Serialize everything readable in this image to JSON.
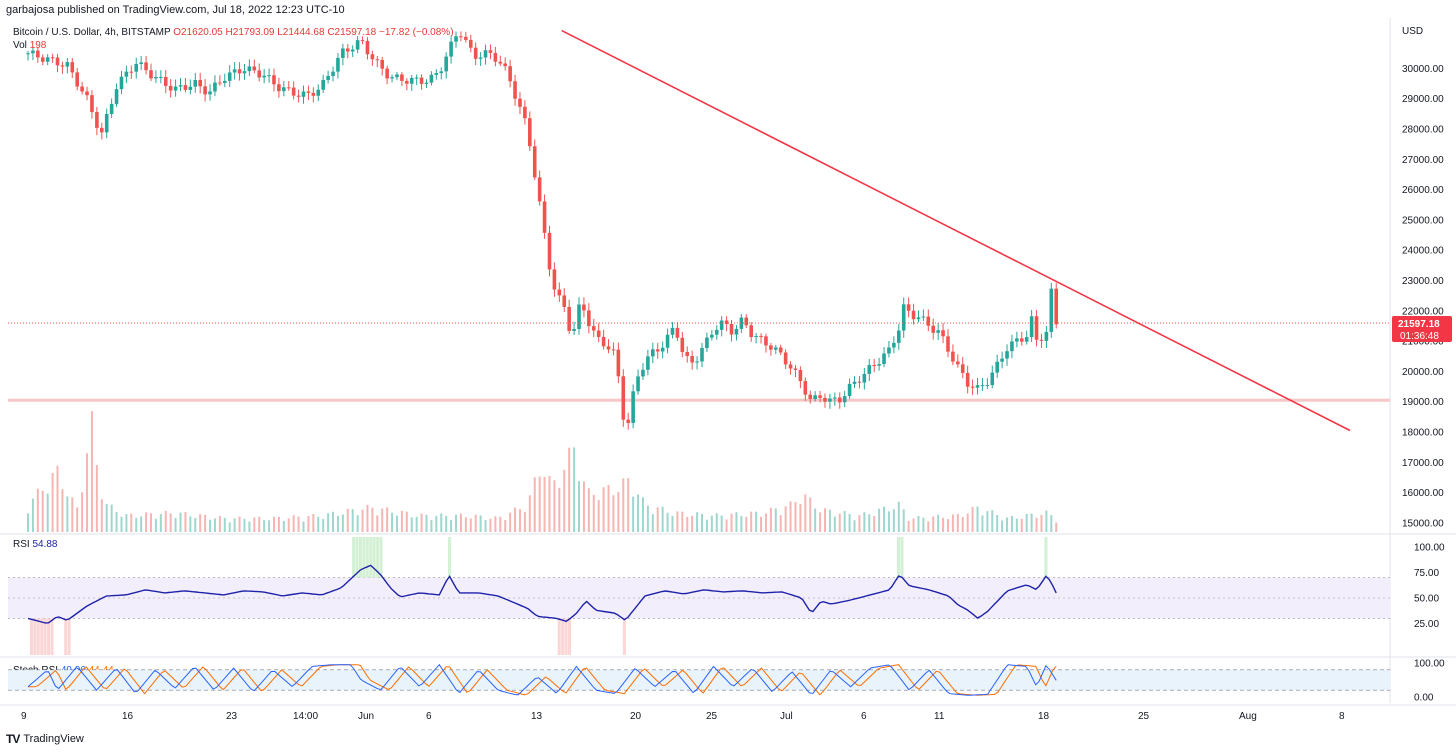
{
  "header": {
    "text": "garbajosa published on TradingView.com, Jul 18, 2022 12:23 UTC-10"
  },
  "legend": {
    "symbol": "Bitcoin / U.S. Dollar, 4h, BITSTAMP",
    "open": "O21620.05",
    "high": "H21793.09",
    "low": "L21444.68",
    "close": "C21597.18",
    "change": "−17.82 (−0.08%)"
  },
  "volume": {
    "label": "Vol",
    "value": "198"
  },
  "rsi": {
    "label": "RSI",
    "value": "54.88"
  },
  "stoch": {
    "label": "Stoch RSI",
    "k": "49.06",
    "d": "44.44"
  },
  "footer": {
    "brand": "TradingView"
  },
  "colors": {
    "up": "#26a69a",
    "down": "#ef5350",
    "trendline": "#f23645",
    "rsi": "#1e22aa",
    "stoch_k": "#2962ff",
    "stoch_d": "#ff6d00"
  },
  "chart_data": {
    "type": "candlestick",
    "currency": "USD",
    "y_ticks": [
      30000,
      29000,
      28000,
      27000,
      26000,
      25000,
      24000,
      23000,
      22000,
      21000,
      20000,
      19000,
      18000,
      17000,
      16000,
      15000
    ],
    "x_ticks": [
      "9",
      "16",
      "23",
      "14:00",
      "Jun",
      "6",
      "13",
      "20",
      "25",
      "Jul",
      "6",
      "11",
      "18",
      "25",
      "Aug",
      "8"
    ],
    "last_price": "21597.18",
    "countdown": "01:36:48",
    "price_path": [
      [
        0,
        30500
      ],
      [
        4,
        30100
      ],
      [
        6,
        29000
      ],
      [
        7.5,
        27800
      ],
      [
        9,
        29400
      ],
      [
        11,
        30200
      ],
      [
        13,
        29700
      ],
      [
        15,
        29300
      ],
      [
        17,
        29500
      ],
      [
        18.5,
        29200
      ],
      [
        20,
        29700
      ],
      [
        22,
        30000
      ],
      [
        24,
        29800
      ],
      [
        25.5,
        29400
      ],
      [
        27,
        29200
      ],
      [
        28.5,
        29100
      ],
      [
        30,
        29400
      ],
      [
        32,
        30500
      ],
      [
        34,
        30900
      ],
      [
        35.5,
        30200
      ],
      [
        37,
        29700
      ],
      [
        39,
        29600
      ],
      [
        41,
        29600
      ],
      [
        42,
        29900
      ],
      [
        43,
        30600
      ],
      [
        44,
        31300
      ],
      [
        45.5,
        30400
      ],
      [
        47,
        30500
      ],
      [
        48,
        30300
      ],
      [
        49,
        29800
      ],
      [
        50,
        28900
      ],
      [
        51,
        28000
      ],
      [
        51.5,
        27000
      ],
      [
        52,
        26000
      ],
      [
        52.5,
        25000
      ],
      [
        53,
        24000
      ],
      [
        53.5,
        23000
      ],
      [
        54,
        22500
      ],
      [
        55,
        22000
      ],
      [
        55.5,
        21000
      ],
      [
        56,
        21700
      ],
      [
        56.5,
        22400
      ],
      [
        57,
        21800
      ],
      [
        58,
        21100
      ],
      [
        59,
        20900
      ],
      [
        60,
        20500
      ],
      [
        60.5,
        19300
      ],
      [
        61,
        18000
      ],
      [
        61.5,
        18500
      ],
      [
        62,
        19700
      ],
      [
        63,
        20300
      ],
      [
        64,
        20700
      ],
      [
        65,
        20900
      ],
      [
        66,
        21500
      ],
      [
        66.5,
        21100
      ],
      [
        67,
        20400
      ],
      [
        68,
        20300
      ],
      [
        69,
        20800
      ],
      [
        70,
        21400
      ],
      [
        71,
        21600
      ],
      [
        72,
        21300
      ],
      [
        73,
        21700
      ],
      [
        74,
        21200
      ],
      [
        75,
        21000
      ],
      [
        76,
        20800
      ],
      [
        77,
        20500
      ],
      [
        78,
        20100
      ],
      [
        79,
        19600
      ],
      [
        80,
        19000
      ],
      [
        81,
        19200
      ],
      [
        82,
        19000
      ],
      [
        83,
        19100
      ],
      [
        84,
        19500
      ],
      [
        85,
        19800
      ],
      [
        86,
        20100
      ],
      [
        87,
        20400
      ],
      [
        88,
        20700
      ],
      [
        89,
        21500
      ],
      [
        89.5,
        22200
      ],
      [
        90,
        21900
      ],
      [
        91,
        21800
      ],
      [
        92,
        21500
      ],
      [
        93,
        21300
      ],
      [
        94,
        20700
      ],
      [
        95,
        20100
      ],
      [
        96,
        19600
      ],
      [
        97,
        19400
      ],
      [
        98,
        19700
      ],
      [
        99,
        20200
      ],
      [
        100,
        20800
      ],
      [
        101,
        21000
      ],
      [
        102,
        21200
      ],
      [
        102.5,
        21700
      ],
      [
        103,
        21000
      ],
      [
        104,
        21300
      ],
      [
        104.5,
        22600
      ],
      [
        105,
        21597
      ]
    ],
    "volume_path": [
      [
        0,
        1
      ],
      [
        3,
        2.2
      ],
      [
        5,
        0.8
      ],
      [
        6.5,
        4
      ],
      [
        7,
        2.5
      ],
      [
        8,
        1
      ],
      [
        10,
        0.6
      ],
      [
        15,
        0.7
      ],
      [
        20,
        0.5
      ],
      [
        25,
        0.5
      ],
      [
        30,
        0.6
      ],
      [
        35,
        0.9
      ],
      [
        40,
        0.6
      ],
      [
        45,
        0.6
      ],
      [
        48,
        0.5
      ],
      [
        51,
        1
      ],
      [
        52.5,
        2.6
      ],
      [
        53.5,
        1.6
      ],
      [
        56,
        3.2
      ],
      [
        57,
        1.4
      ],
      [
        60,
        1.6
      ],
      [
        61.5,
        1.9
      ],
      [
        63,
        1.0
      ],
      [
        66,
        0.7
      ],
      [
        70,
        0.6
      ],
      [
        75,
        0.7
      ],
      [
        78,
        1.0
      ],
      [
        79,
        1.4
      ],
      [
        81,
        0.8
      ],
      [
        85,
        0.6
      ],
      [
        89,
        1.0
      ],
      [
        90,
        0.5
      ],
      [
        95,
        0.6
      ],
      [
        97,
        0.9
      ],
      [
        100,
        0.5
      ],
      [
        104,
        0.7
      ],
      [
        105,
        0.5
      ]
    ],
    "rsi_path": [
      [
        0,
        30
      ],
      [
        2,
        25
      ],
      [
        3,
        32
      ],
      [
        4,
        28
      ],
      [
        6,
        42
      ],
      [
        8,
        52
      ],
      [
        10,
        53
      ],
      [
        12,
        58
      ],
      [
        14,
        55
      ],
      [
        16,
        57
      ],
      [
        18,
        55
      ],
      [
        20,
        53
      ],
      [
        22,
        57
      ],
      [
        24,
        56
      ],
      [
        26,
        52
      ],
      [
        28,
        55
      ],
      [
        30,
        53
      ],
      [
        32,
        60
      ],
      [
        34,
        78
      ],
      [
        35,
        82
      ],
      [
        36,
        73
      ],
      [
        37,
        60
      ],
      [
        38,
        51
      ],
      [
        40,
        55
      ],
      [
        42,
        53
      ],
      [
        43,
        72
      ],
      [
        44,
        55
      ],
      [
        46,
        55
      ],
      [
        48,
        52
      ],
      [
        49,
        48
      ],
      [
        51,
        40
      ],
      [
        52,
        32
      ],
      [
        54,
        30
      ],
      [
        55,
        27
      ],
      [
        56,
        35
      ],
      [
        57,
        47
      ],
      [
        58,
        38
      ],
      [
        60,
        35
      ],
      [
        61,
        28
      ],
      [
        62,
        40
      ],
      [
        63,
        52
      ],
      [
        65,
        57
      ],
      [
        67,
        54
      ],
      [
        69,
        58
      ],
      [
        71,
        56
      ],
      [
        73,
        57
      ],
      [
        75,
        55
      ],
      [
        77,
        56
      ],
      [
        79,
        50
      ],
      [
        80,
        35
      ],
      [
        81,
        47
      ],
      [
        82,
        44
      ],
      [
        84,
        48
      ],
      [
        86,
        53
      ],
      [
        88,
        58
      ],
      [
        89,
        73
      ],
      [
        90,
        62
      ],
      [
        92,
        58
      ],
      [
        94,
        52
      ],
      [
        95,
        43
      ],
      [
        96,
        38
      ],
      [
        97,
        30
      ],
      [
        98,
        37
      ],
      [
        99,
        47
      ],
      [
        100,
        57
      ],
      [
        102,
        63
      ],
      [
        103,
        58
      ],
      [
        104,
        72
      ],
      [
        104.5,
        65
      ],
      [
        105,
        55
      ]
    ],
    "stoch_k_path": [
      [
        0,
        30
      ],
      [
        2,
        80
      ],
      [
        3,
        20
      ],
      [
        5,
        90
      ],
      [
        7,
        20
      ],
      [
        9,
        85
      ],
      [
        11,
        10
      ],
      [
        13,
        80
      ],
      [
        15,
        25
      ],
      [
        17,
        90
      ],
      [
        19,
        20
      ],
      [
        21,
        85
      ],
      [
        23,
        15
      ],
      [
        25,
        80
      ],
      [
        27,
        30
      ],
      [
        29,
        90
      ],
      [
        31,
        95
      ],
      [
        33,
        95
      ],
      [
        34,
        50
      ],
      [
        36,
        20
      ],
      [
        38,
        90
      ],
      [
        40,
        30
      ],
      [
        42,
        95
      ],
      [
        44,
        10
      ],
      [
        46,
        80
      ],
      [
        48,
        20
      ],
      [
        50,
        5
      ],
      [
        52,
        60
      ],
      [
        54,
        10
      ],
      [
        56,
        90
      ],
      [
        58,
        20
      ],
      [
        60,
        10
      ],
      [
        62,
        85
      ],
      [
        64,
        30
      ],
      [
        66,
        80
      ],
      [
        68,
        10
      ],
      [
        70,
        90
      ],
      [
        72,
        30
      ],
      [
        74,
        85
      ],
      [
        76,
        15
      ],
      [
        78,
        75
      ],
      [
        80,
        5
      ],
      [
        82,
        80
      ],
      [
        84,
        30
      ],
      [
        86,
        85
      ],
      [
        88,
        95
      ],
      [
        90,
        20
      ],
      [
        92,
        80
      ],
      [
        94,
        10
      ],
      [
        96,
        5
      ],
      [
        98,
        8
      ],
      [
        100,
        95
      ],
      [
        102,
        90
      ],
      [
        103,
        30
      ],
      [
        104,
        95
      ],
      [
        105,
        49
      ]
    ],
    "trendline": [
      [
        54.5,
        31250
      ],
      [
        135,
        18050
      ]
    ],
    "support_line": 19050,
    "rsi_bands": {
      "upper": 70,
      "mid": 50,
      "lower": 30
    },
    "rsi_ticks": [
      100,
      75,
      50,
      25
    ],
    "stoch_ticks": [
      100,
      0
    ],
    "stoch_bands": {
      "upper": 80,
      "lower": 20
    },
    "x_range": [
      0,
      135
    ],
    "price_range": [
      14700,
      31400
    ]
  }
}
